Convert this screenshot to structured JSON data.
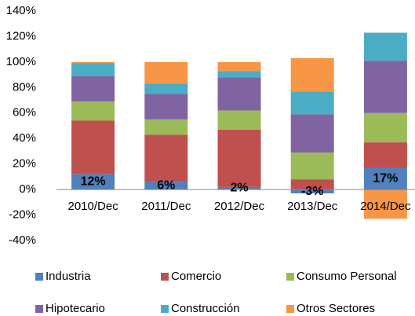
{
  "chart_data": {
    "type": "stacked_bar",
    "categories": [
      "2010/Dec",
      "2011/Dec",
      "2012/Dec",
      "2013/Dec",
      "2014/Dec"
    ],
    "series": [
      {
        "name": "Industria",
        "color": "#4f81bd",
        "values": [
          12,
          6,
          2,
          -3,
          17
        ],
        "value_labels": [
          "12%",
          "6%",
          "2%",
          "-3%",
          "17%"
        ]
      },
      {
        "name": "Comercio",
        "color": "#c0504d",
        "values": [
          42,
          37,
          45,
          8,
          20
        ]
      },
      {
        "name": "Consumo Personal",
        "color": "#9bbb59",
        "values": [
          15,
          12,
          15,
          21,
          23
        ]
      },
      {
        "name": "Hipotecario",
        "color": "#8064a2",
        "values": [
          20,
          20,
          26,
          30,
          41
        ]
      },
      {
        "name": "Construcción",
        "color": "#4bacc6",
        "values": [
          10,
          8,
          5,
          18,
          22
        ]
      },
      {
        "name": "Otros Sectores",
        "color": "#f79646",
        "values": [
          1,
          17,
          7,
          26,
          -23
        ]
      }
    ],
    "ylim": [
      -40,
      140
    ],
    "yticks": [
      {
        "value": -40,
        "label": "-40%"
      },
      {
        "value": -20,
        "label": "-20%"
      },
      {
        "value": 0,
        "label": "0%"
      },
      {
        "value": 20,
        "label": "20%"
      },
      {
        "value": 40,
        "label": "40%"
      },
      {
        "value": 60,
        "label": "60%"
      },
      {
        "value": 80,
        "label": "80%"
      },
      {
        "value": 100,
        "label": "100%"
      },
      {
        "value": 120,
        "label": "120%"
      },
      {
        "value": 140,
        "label": "140%"
      }
    ],
    "legend": "bottom"
  }
}
